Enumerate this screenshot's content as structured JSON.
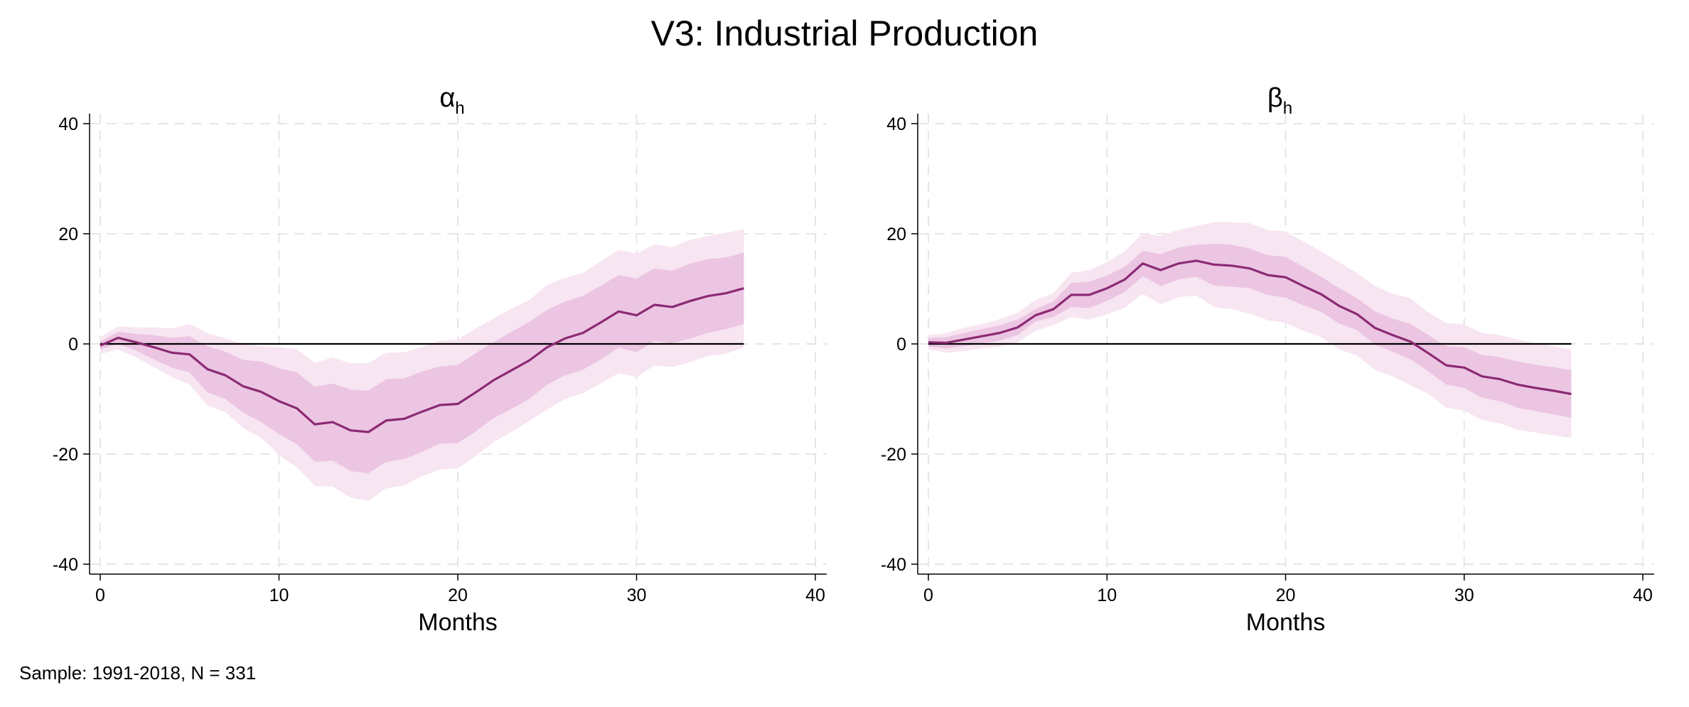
{
  "title": "V3: Industrial Production",
  "note": "Sample: 1991-2018, N = 331",
  "colors": {
    "line": "#8B2A72",
    "inner_band": "#ECC5E3",
    "outer_band": "#F7E5F1",
    "zero_line": "#000000",
    "grid": "#E6E6E6"
  },
  "chart_data": [
    {
      "type": "line",
      "title": "α",
      "title_subscript": "h",
      "xlabel": "Months",
      "ylabel": "",
      "xlim": [
        0,
        40
      ],
      "ylim": [
        -40,
        40
      ],
      "xticks": [
        0,
        10,
        20,
        30,
        40
      ],
      "yticks": [
        -40,
        -20,
        0,
        20,
        40
      ],
      "grid": true,
      "reference_line": 0,
      "x": [
        0,
        1,
        2,
        3,
        4,
        5,
        6,
        7,
        8,
        9,
        10,
        11,
        12,
        13,
        14,
        15,
        16,
        17,
        18,
        19,
        20,
        21,
        22,
        23,
        24,
        25,
        26,
        27,
        28,
        29,
        30,
        31,
        32,
        33,
        34,
        35,
        36
      ],
      "estimate": [
        -0.3,
        1.1,
        0.3,
        -0.6,
        -1.6,
        -1.9,
        -4.6,
        -5.7,
        -7.7,
        -8.7,
        -10.4,
        -11.7,
        -14.6,
        -14.2,
        -15.7,
        -16.0,
        -13.9,
        -13.6,
        -12.3,
        -11.1,
        -10.9,
        -8.8,
        -6.6,
        -4.8,
        -3.0,
        -0.6,
        1.0,
        2.0,
        3.9,
        5.9,
        5.2,
        7.1,
        6.7,
        7.8,
        8.7,
        9.2,
        10.1
      ],
      "inner_upper": [
        0.4,
        2.2,
        1.8,
        1.6,
        1.1,
        1.4,
        -0.4,
        -1.4,
        -2.9,
        -3.2,
        -4.4,
        -5.2,
        -7.8,
        -7.2,
        -8.3,
        -8.5,
        -6.4,
        -6.3,
        -5.0,
        -4.1,
        -3.8,
        -1.7,
        0.3,
        2.2,
        4.0,
        6.2,
        7.7,
        8.7,
        10.6,
        12.5,
        11.9,
        13.7,
        13.3,
        14.6,
        15.4,
        15.7,
        16.6
      ],
      "inner_lower": [
        -1.0,
        0.0,
        -1.2,
        -2.8,
        -4.3,
        -5.2,
        -8.8,
        -10.0,
        -12.5,
        -14.2,
        -16.4,
        -18.2,
        -21.4,
        -21.2,
        -23.1,
        -23.5,
        -21.4,
        -20.9,
        -19.6,
        -18.1,
        -18.0,
        -15.9,
        -13.5,
        -11.8,
        -10.0,
        -7.4,
        -5.7,
        -4.7,
        -2.8,
        -0.7,
        -1.5,
        0.5,
        0.1,
        1.0,
        2.0,
        2.7,
        3.6
      ],
      "outer_upper": [
        1.2,
        3.2,
        3.0,
        3.0,
        2.8,
        3.6,
        2.0,
        1.0,
        -0.1,
        -0.4,
        -0.6,
        -1.0,
        -3.4,
        -2.5,
        -3.5,
        -3.5,
        -1.6,
        -1.5,
        -0.6,
        0.6,
        0.8,
        2.8,
        4.6,
        6.4,
        8.0,
        10.7,
        12.0,
        12.9,
        15.0,
        17.1,
        16.4,
        18.1,
        17.6,
        18.9,
        19.6,
        20.2,
        20.8
      ],
      "outer_lower": [
        -1.8,
        -1.0,
        -2.4,
        -4.2,
        -6.0,
        -7.4,
        -11.2,
        -12.4,
        -15.3,
        -17.0,
        -20.2,
        -22.4,
        -25.8,
        -25.9,
        -27.9,
        -28.5,
        -26.2,
        -25.7,
        -24.0,
        -22.8,
        -22.6,
        -20.4,
        -17.8,
        -16.0,
        -14.0,
        -11.9,
        -10.0,
        -8.9,
        -7.2,
        -5.3,
        -6.0,
        -3.9,
        -4.2,
        -3.3,
        -2.2,
        -1.8,
        -0.6
      ]
    },
    {
      "type": "line",
      "title": "β",
      "title_subscript": "h",
      "xlabel": "Months",
      "ylabel": "",
      "xlim": [
        0,
        40
      ],
      "ylim": [
        -40,
        40
      ],
      "xticks": [
        0,
        10,
        20,
        30,
        40
      ],
      "yticks": [
        -40,
        -20,
        0,
        20,
        40
      ],
      "grid": true,
      "reference_line": 0,
      "x": [
        0,
        1,
        2,
        3,
        4,
        5,
        6,
        7,
        8,
        9,
        10,
        11,
        12,
        13,
        14,
        15,
        16,
        17,
        18,
        19,
        20,
        21,
        22,
        23,
        24,
        25,
        26,
        27,
        28,
        29,
        30,
        31,
        32,
        33,
        34,
        35,
        36
      ],
      "estimate": [
        0.3,
        0.2,
        0.8,
        1.4,
        2.0,
        3.0,
        5.2,
        6.3,
        8.9,
        8.9,
        10.1,
        11.7,
        14.6,
        13.4,
        14.6,
        15.1,
        14.4,
        14.2,
        13.7,
        12.5,
        12.1,
        10.5,
        9.0,
        6.9,
        5.4,
        2.9,
        1.6,
        0.4,
        -1.7,
        -3.9,
        -4.3,
        -5.9,
        -6.4,
        -7.4,
        -8.0,
        -8.5,
        -9.1
      ],
      "inner_upper": [
        1.1,
        1.2,
        2.0,
        2.7,
        3.4,
        4.4,
        6.3,
        7.7,
        11.1,
        11.3,
        12.4,
        14.0,
        16.9,
        16.3,
        17.5,
        18.0,
        18.2,
        18.0,
        17.3,
        16.1,
        15.8,
        14.0,
        12.2,
        10.1,
        8.3,
        5.9,
        4.6,
        3.6,
        1.6,
        -0.4,
        -0.6,
        -2.0,
        -2.4,
        -3.2,
        -3.8,
        -4.2,
        -4.8
      ],
      "inner_lower": [
        -0.5,
        -0.8,
        -0.4,
        0.1,
        0.6,
        1.6,
        4.1,
        4.9,
        6.7,
        6.5,
        7.8,
        9.4,
        12.3,
        10.5,
        11.7,
        12.2,
        10.6,
        10.4,
        10.1,
        8.9,
        8.4,
        7.0,
        5.8,
        3.7,
        2.5,
        -0.1,
        -1.4,
        -2.8,
        -5.0,
        -7.4,
        -8.0,
        -9.8,
        -10.4,
        -11.6,
        -12.2,
        -12.8,
        -13.4
      ],
      "outer_upper": [
        1.6,
        2.0,
        2.9,
        3.6,
        4.5,
        5.7,
        8.0,
        9.2,
        12.9,
        13.4,
        14.8,
        16.8,
        20.1,
        19.6,
        20.7,
        21.4,
        22.1,
        22.1,
        21.9,
        20.7,
        20.4,
        18.6,
        16.8,
        14.8,
        12.9,
        10.5,
        9.1,
        8.3,
        5.7,
        3.8,
        3.5,
        2.0,
        1.6,
        0.8,
        0.1,
        -0.4,
        -1.1
      ],
      "outer_lower": [
        -1.0,
        -1.6,
        -1.3,
        -0.8,
        -0.5,
        0.3,
        2.4,
        3.4,
        4.9,
        4.4,
        5.4,
        6.6,
        9.1,
        7.2,
        8.5,
        8.8,
        6.7,
        6.3,
        5.5,
        4.3,
        3.8,
        2.4,
        1.2,
        -1.0,
        -2.1,
        -4.7,
        -5.9,
        -7.5,
        -9.1,
        -11.6,
        -12.1,
        -13.8,
        -14.4,
        -15.6,
        -16.1,
        -16.6,
        -17.1
      ]
    }
  ]
}
